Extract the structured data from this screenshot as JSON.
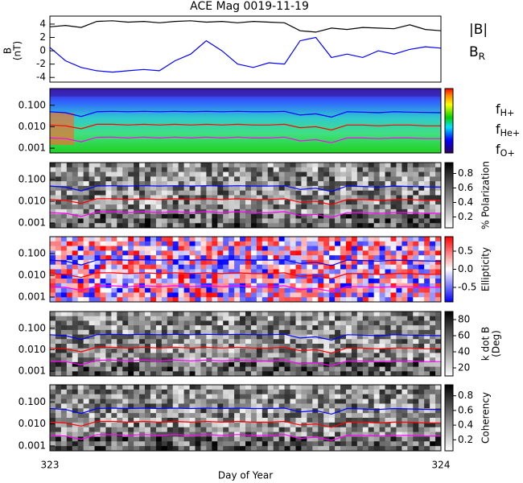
{
  "chart_data": {
    "type": "multi-panel",
    "title": "ACE Mag 0019-11-19",
    "x_label": "Day of Year",
    "xlim": [
      323,
      324
    ],
    "xticks": [
      323,
      324
    ],
    "x": [
      323,
      323.04,
      323.08,
      323.12,
      323.16,
      323.2,
      323.24,
      323.28,
      323.32,
      323.36,
      323.4,
      323.44,
      323.48,
      323.52,
      323.56,
      323.6,
      323.64,
      323.68,
      323.72,
      323.76,
      323.8,
      323.84,
      323.88,
      323.92,
      323.96,
      324
    ],
    "field_panel": {
      "type": "line",
      "y_label": "B",
      "y_unit": "(nT)",
      "ylim": [
        -4.7,
        5.2
      ],
      "yticks": [
        -4,
        -2,
        0,
        2,
        4
      ],
      "series": [
        {
          "name": "|B|",
          "color": "#000000",
          "values": [
            3.6,
            3.8,
            3.5,
            4.4,
            4.5,
            4.3,
            4.4,
            4.2,
            4.4,
            4.5,
            4.3,
            4.4,
            4.2,
            4.4,
            4.3,
            4.2,
            3.0,
            2.8,
            3.4,
            3.2,
            3.5,
            3.4,
            3.3,
            3.9,
            3.2,
            3.0
          ]
        },
        {
          "name": "B",
          "subscript": "R",
          "color": "#0000ff",
          "values": [
            0.5,
            -1.5,
            -2.5,
            -3.0,
            -3.2,
            -3.0,
            -2.8,
            -3.0,
            -1.5,
            -0.5,
            1.5,
            0.0,
            -2.0,
            -2.5,
            -1.8,
            -2.0,
            1.5,
            2.0,
            -1.0,
            -0.5,
            -1.0,
            0.0,
            -0.5,
            0.2,
            0.6,
            0.4
          ]
        }
      ]
    },
    "frequency_series": [
      {
        "name": "f",
        "subscript": "H+",
        "color": "#0000ff",
        "values": [
          0.05,
          0.045,
          0.03,
          0.05,
          0.052,
          0.05,
          0.052,
          0.05,
          0.052,
          0.05,
          0.052,
          0.05,
          0.052,
          0.05,
          0.05,
          0.052,
          0.035,
          0.04,
          0.028,
          0.05,
          0.048,
          0.045,
          0.05,
          0.048,
          0.046,
          0.045
        ]
      },
      {
        "name": "f",
        "subscript": "He+",
        "color": "#ff0000",
        "values": [
          0.012,
          0.011,
          0.008,
          0.013,
          0.013,
          0.012,
          0.013,
          0.012,
          0.013,
          0.012,
          0.013,
          0.012,
          0.013,
          0.012,
          0.012,
          0.013,
          0.009,
          0.01,
          0.007,
          0.012,
          0.012,
          0.011,
          0.012,
          0.012,
          0.011,
          0.011
        ]
      },
      {
        "name": "f",
        "subscript": "O+",
        "color": "#ff00ff",
        "values": [
          0.003,
          0.0028,
          0.002,
          0.0032,
          0.0033,
          0.003,
          0.0033,
          0.003,
          0.0033,
          0.003,
          0.0033,
          0.003,
          0.0033,
          0.003,
          0.003,
          0.0033,
          0.0022,
          0.0025,
          0.0018,
          0.003,
          0.003,
          0.0028,
          0.003,
          0.003,
          0.0028,
          0.0028
        ]
      }
    ],
    "spectrogram_ylim": [
      0.0006,
      0.6
    ],
    "spectrogram_yticks": [
      {
        "value": 0.1,
        "label": "0.100"
      },
      {
        "value": 0.01,
        "label": "0.010"
      },
      {
        "value": 0.001,
        "label": "0.001"
      }
    ],
    "spectrogram_panels": [
      {
        "type": "spectrogram",
        "colormap": "rainbow"
      },
      {
        "type": "spectrogram",
        "colormap": "gray",
        "colorbar_label": "% Polarization",
        "colorbar_lim": [
          0.05,
          0.95
        ],
        "colorbar_ticks": [
          0.2,
          0.4,
          0.6,
          0.8
        ]
      },
      {
        "type": "spectrogram",
        "colormap": "redblue",
        "colorbar_label": "Ellipticity",
        "colorbar_lim": [
          -0.9,
          0.9
        ],
        "colorbar_ticks": [
          -0.5,
          {
            "value": 0,
            "label": "0.0"
          },
          0.5
        ]
      },
      {
        "type": "spectrogram",
        "colormap": "gray",
        "colorbar_label": "k dot B",
        "colorbar_label2": "(Deg)",
        "colorbar_lim": [
          10,
          90
        ],
        "colorbar_ticks": [
          20,
          40,
          60,
          80
        ]
      },
      {
        "type": "spectrogram",
        "colormap": "gray",
        "colorbar_label": "Coherency",
        "colorbar_lim": [
          0.05,
          0.95
        ],
        "colorbar_ticks": [
          0.2,
          0.4,
          0.6,
          0.8
        ]
      }
    ]
  }
}
